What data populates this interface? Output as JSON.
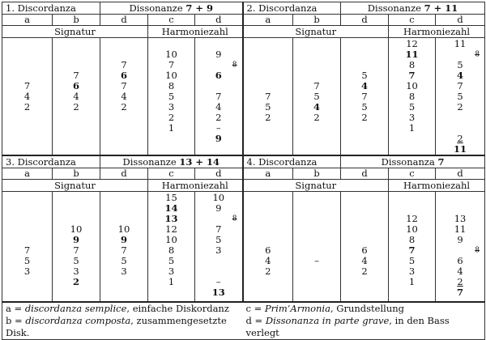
{
  "sections": [
    {
      "title": "1. Discordanza",
      "dissonance_label": "Dissonanze",
      "dissonance_nums": "7 + 9",
      "col_labels": [
        "a",
        "b",
        "d",
        "c",
        "d"
      ],
      "signatur_label": "Signatur",
      "harmoniezahl_label": "Harmoniezahl",
      "columns": [
        [
          "",
          "",
          "",
          "",
          "7",
          "4",
          "2",
          "",
          "",
          ""
        ],
        [
          "",
          "",
          "",
          "7",
          "6",
          "4",
          "2",
          "",
          "",
          ""
        ],
        [
          "",
          "",
          "7",
          "6",
          "7",
          "4",
          "2",
          "",
          "",
          ""
        ],
        [
          "10",
          "9",
          "7",
          "10",
          "8",
          "5",
          "3",
          "2",
          "1",
          ""
        ],
        [
          "9",
          "8",
          "6",
          "",
          "7",
          "4",
          "2",
          "",
          "–",
          "9"
        ]
      ]
    },
    {
      "title": "2. Discordanza",
      "dissonance_label": "Dissonanze",
      "dissonance_nums": "7 + 11",
      "col_labels": [
        "a",
        "b",
        "d",
        "c",
        "d"
      ],
      "signatur_label": "Signatur",
      "harmoniezahl_label": "Harmoniezahl",
      "columns": [
        [
          "",
          "",
          "",
          "",
          "",
          "7",
          "5",
          "2",
          "",
          ""
        ],
        [
          "",
          "",
          "",
          "",
          "7",
          "5",
          "4",
          "2",
          "",
          ""
        ],
        [
          "",
          "",
          "",
          "5",
          "4",
          "7",
          "5",
          "2",
          "",
          ""
        ],
        [
          "12",
          "11",
          "8",
          "7",
          "10",
          "8",
          "5",
          "3",
          "1",
          ""
        ],
        [
          "11",
          "8",
          "5",
          "4",
          "7",
          "5",
          "2",
          "",
          "2",
          "11"
        ]
      ]
    },
    {
      "title": "3. Discordanza",
      "dissonance_label": "Dissonanze",
      "dissonance_nums": "13 + 14",
      "col_labels": [
        "a",
        "b",
        "d",
        "c",
        "d"
      ],
      "signatur_label": "Signatur",
      "harmoniezahl_label": "Harmoniezahl",
      "columns": [
        [
          "",
          "",
          "",
          "",
          "7",
          "5",
          "3",
          "",
          "",
          ""
        ],
        [
          "",
          "",
          "",
          "10",
          "9",
          "7",
          "5",
          "3",
          "2",
          ""
        ],
        [
          "",
          "",
          "",
          "10",
          "9",
          "7",
          "5",
          "3",
          "",
          ""
        ],
        [
          "15",
          "14",
          "13",
          "12",
          "10",
          "8",
          "5",
          "3",
          "1",
          ""
        ],
        [
          "10",
          "9",
          "8",
          "7",
          "5",
          "3",
          "",
          "",
          "–",
          "13"
        ]
      ]
    },
    {
      "title": "4. Discordanza",
      "dissonance_label": "Dissonanza",
      "dissonance_nums": "7",
      "col_labels": [
        "a",
        "b",
        "d",
        "c",
        "d"
      ],
      "signatur_label": "Signatur",
      "harmoniezahl_label": "Harmoniezahl",
      "columns": [
        [
          "",
          "",
          "",
          "",
          "6",
          "4",
          "2",
          "",
          "",
          ""
        ],
        [
          "",
          "",
          "",
          "",
          "",
          "–",
          "",
          "",
          "",
          ""
        ],
        [
          "",
          "",
          "",
          "",
          "6",
          "4",
          "2",
          "",
          "",
          ""
        ],
        [
          "",
          "",
          "12",
          "10",
          "8",
          "7",
          "5",
          "3",
          "1",
          ""
        ],
        [
          "",
          "",
          "13",
          "11",
          "9",
          "8",
          "6",
          "4",
          "2",
          "7"
        ]
      ]
    }
  ],
  "legend": {
    "a_key": "a = ",
    "a_term": "discordanza semplice",
    "a_desc": ", einfache Diskordanz",
    "b_key": "b = ",
    "b_term": "discordanza composta",
    "b_desc": ", zusammengesetzte Disk.",
    "c_key": "c = ",
    "c_term": "Prim’Armonia",
    "c_desc": ", Grundstellung",
    "d_key": "d = ",
    "d_term": "Dissonanza in parte grave",
    "d_desc": ", in den Bass verlegt"
  }
}
